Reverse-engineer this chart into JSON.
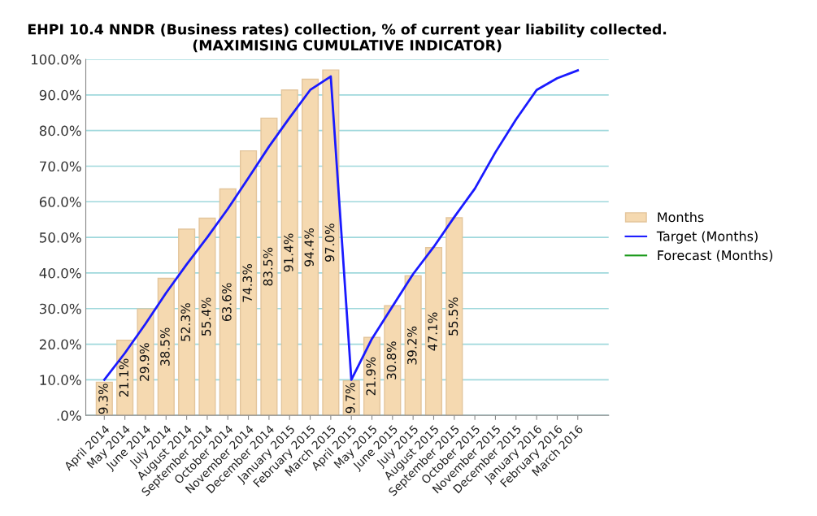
{
  "chart_data": {
    "type": "bar",
    "title": "EHPI 10.4 NNDR (Business rates) collection, % of current year liability collected.\n(MAXIMISING CUMULATIVE INDICATOR)",
    "categories": [
      "April 2014",
      "May 2014",
      "June 2014",
      "July 2014",
      "August 2014",
      "September 2014",
      "October 2014",
      "November 2014",
      "December 2014",
      "January 2015",
      "February 2015",
      "March 2015",
      "April 2015",
      "May 2015",
      "June 2015",
      "July 2015",
      "August 2015",
      "September 2015",
      "October 2015",
      "November 2015",
      "December 2015",
      "January 2016",
      "February 2016",
      "March 2016"
    ],
    "series": [
      {
        "name": "Months",
        "color": "#f5d9b0",
        "values": [
          9.3,
          21.1,
          29.9,
          38.5,
          52.3,
          55.4,
          63.6,
          74.3,
          83.5,
          91.4,
          94.4,
          97.0,
          9.7,
          21.9,
          30.8,
          39.2,
          47.1,
          55.5,
          null,
          null,
          null,
          null,
          null,
          null
        ],
        "value_labels": [
          "9.3%",
          "21.1%",
          "29.9%",
          "38.5%",
          "52.3%",
          "55.4%",
          "63.6%",
          "74.3%",
          "83.5%",
          "91.4%",
          "94.4%",
          "97.0%",
          "9.7%",
          "21.9%",
          "30.8%",
          "39.2%",
          "47.1%",
          "55.5%",
          null,
          null,
          null,
          null,
          null,
          null
        ]
      },
      {
        "name": "Target (Months)",
        "type": "line",
        "color": "#1a1aff",
        "values": [
          10.0,
          17.5,
          25.7,
          34.4,
          42.4,
          50.0,
          58.0,
          66.7,
          75.5,
          83.6,
          91.4,
          95.2,
          10.0,
          21.5,
          30.6,
          39.7,
          47.3,
          55.7,
          63.7,
          73.9,
          83.1,
          91.4,
          94.7,
          96.9
        ]
      },
      {
        "name": "Forecast (Months)",
        "type": "line",
        "color": "#1a9a1a",
        "values": [
          null,
          null,
          null,
          null,
          null,
          null,
          null,
          null,
          null,
          null,
          null,
          null,
          null,
          null,
          null,
          null,
          null,
          null,
          null,
          null,
          null,
          null,
          null,
          null
        ]
      }
    ],
    "ylim": [
      0,
      100
    ],
    "yticks": [
      {
        "value": 0,
        "label": ".0%"
      },
      {
        "value": 10,
        "label": "10.0%"
      },
      {
        "value": 20,
        "label": "20.0%"
      },
      {
        "value": 30,
        "label": "30.0%"
      },
      {
        "value": 40,
        "label": "40.0%"
      },
      {
        "value": 50,
        "label": "50.0%"
      },
      {
        "value": 60,
        "label": "60.0%"
      },
      {
        "value": 70,
        "label": "70.0%"
      },
      {
        "value": 80,
        "label": "80.0%"
      },
      {
        "value": 90,
        "label": "90.0%"
      },
      {
        "value": 100,
        "label": "100.0%"
      }
    ],
    "grid": "y",
    "legend": "right",
    "marker": "none",
    "line_style": "solid"
  }
}
